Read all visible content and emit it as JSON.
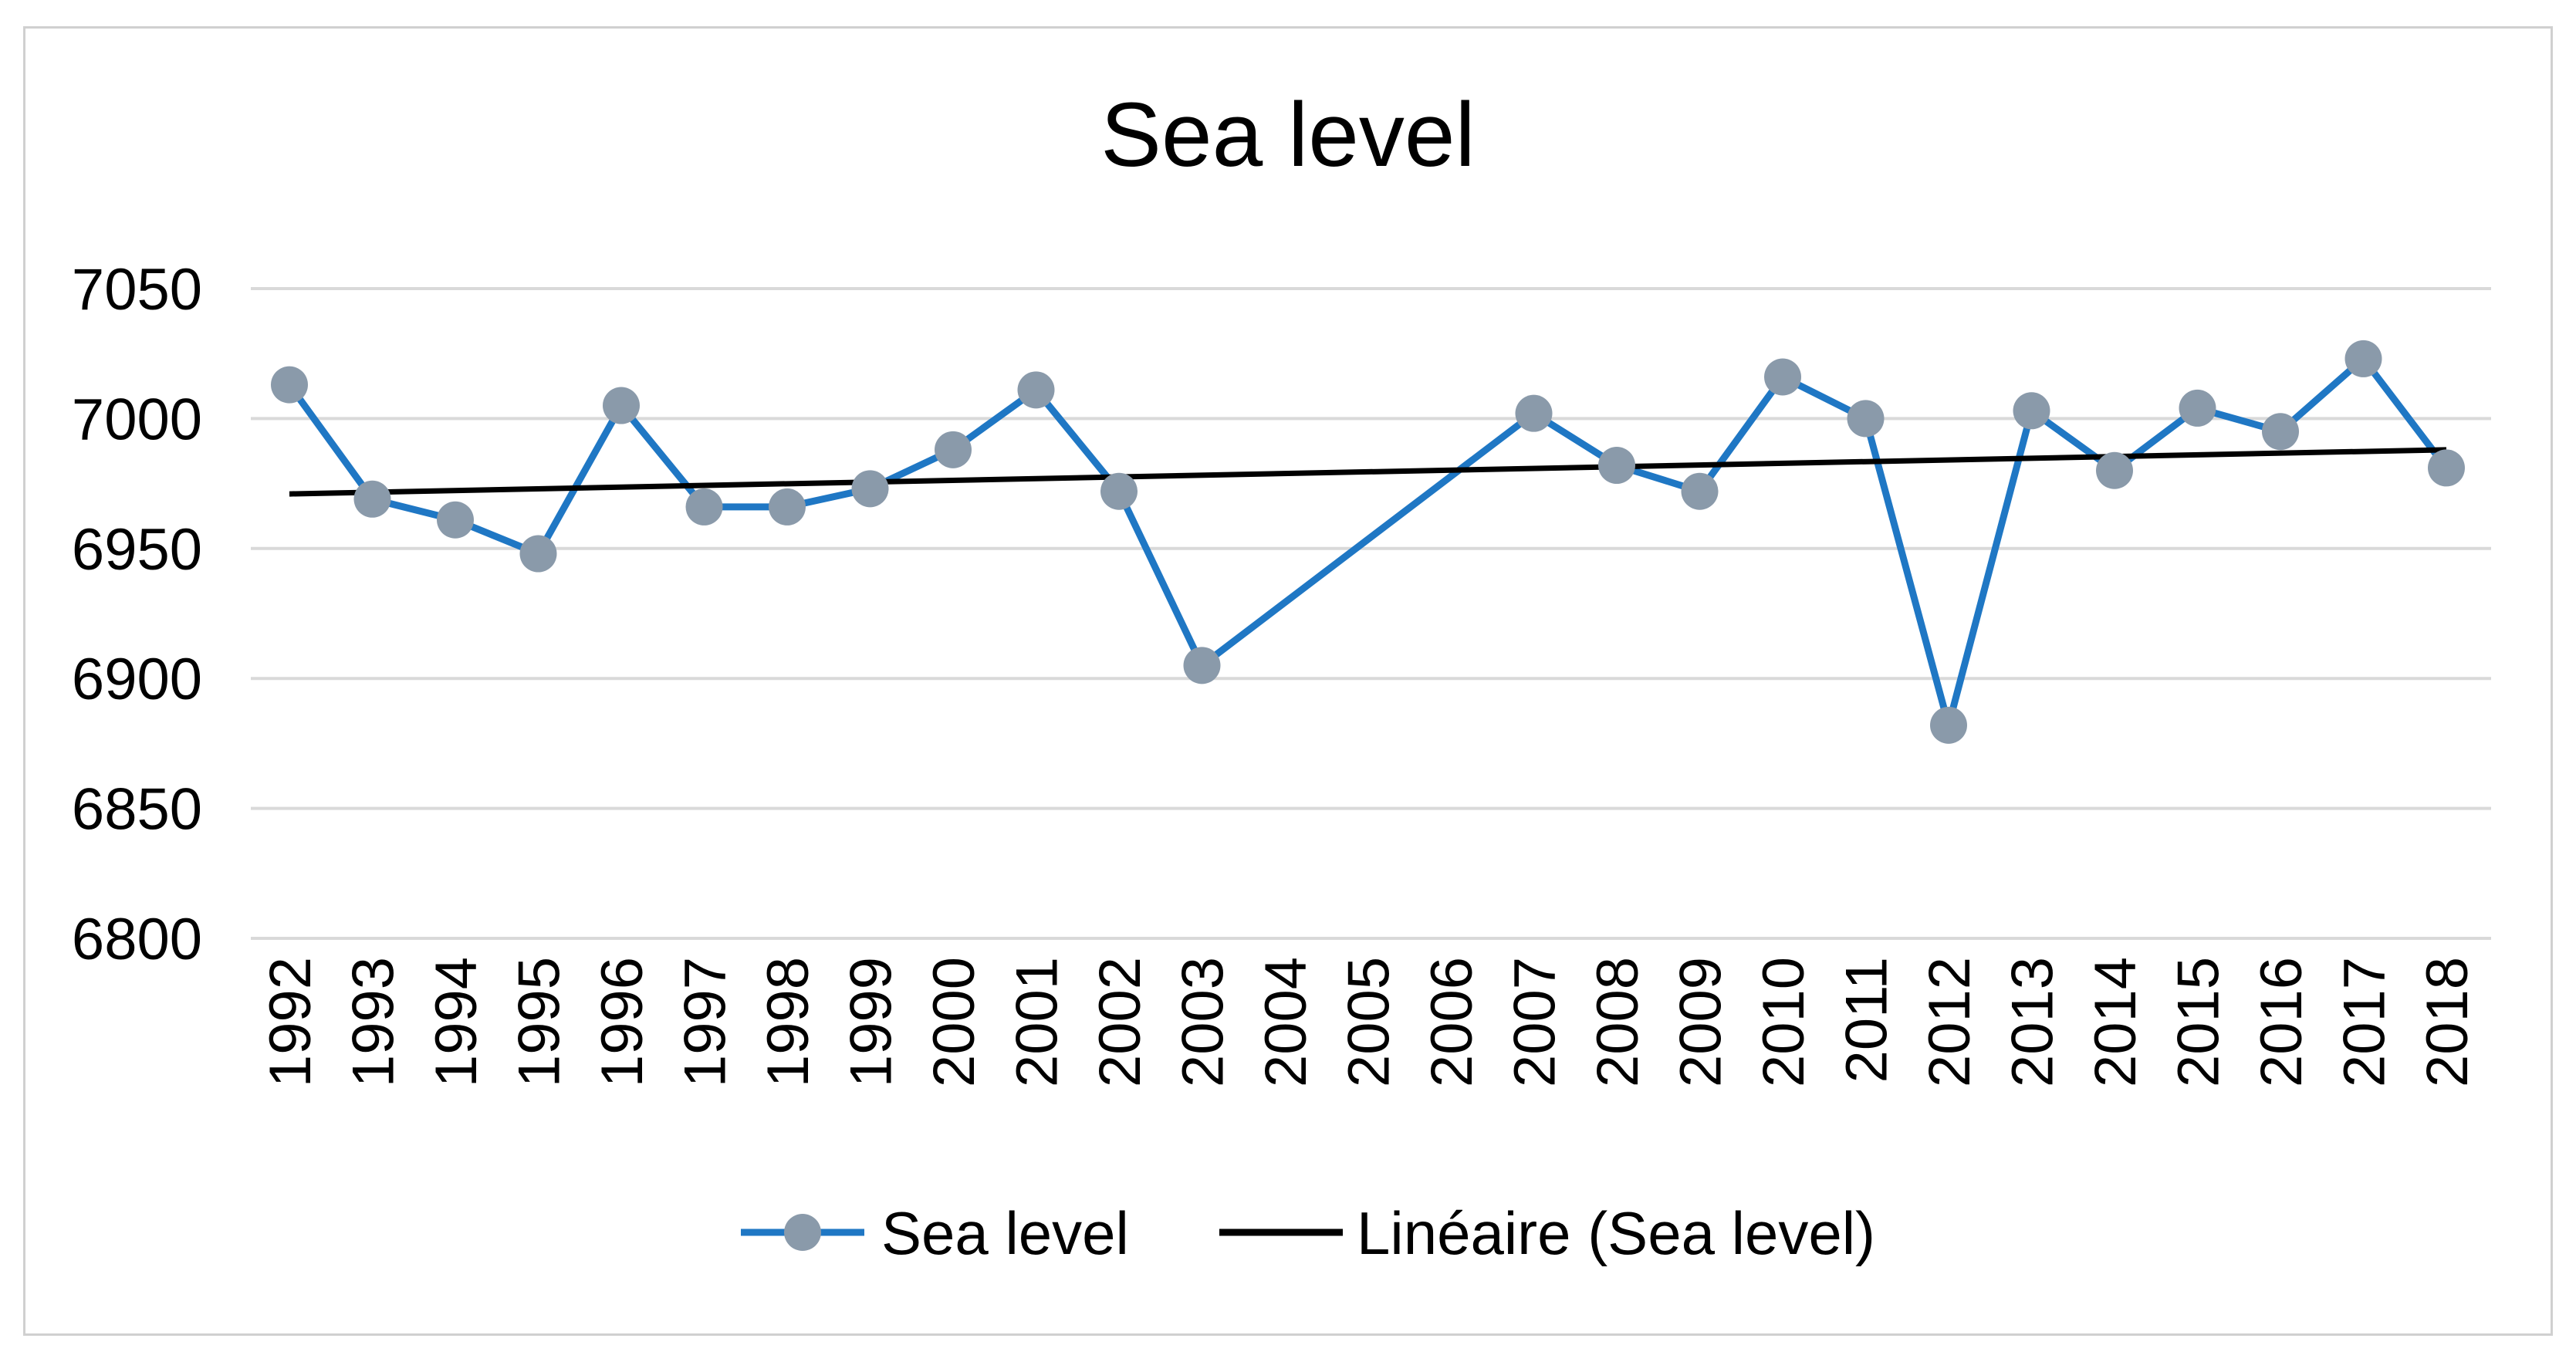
{
  "chart_data": {
    "type": "line",
    "title": "Sea level",
    "xlabel": "",
    "ylabel": "",
    "ylim": [
      6800,
      7050
    ],
    "yticks": [
      6800,
      6850,
      6900,
      6950,
      7000,
      7050
    ],
    "ytick_labels": [
      "6800",
      "6850",
      "6900",
      "6950",
      "7000",
      "7050"
    ],
    "grid": true,
    "legend_position": "bottom",
    "categories": [
      "1992",
      "1993",
      "1994",
      "1995",
      "1996",
      "1997",
      "1998",
      "1999",
      "2000",
      "2001",
      "2002",
      "2003",
      "2004",
      "2005",
      "2006",
      "2007",
      "2008",
      "2009",
      "2010",
      "2011",
      "2012",
      "2013",
      "2014",
      "2015",
      "2016",
      "2017",
      "2018"
    ],
    "series": [
      {
        "name": "Sea level",
        "color": "#1f77c4",
        "marker_color": "#8a9aaa",
        "values": [
          7013,
          6969,
          6961,
          6948,
          7005,
          6966,
          6966,
          6973,
          6988,
          7011,
          6972,
          6905,
          null,
          null,
          null,
          7002,
          6982,
          6972,
          7016,
          7000,
          6882,
          7003,
          6980,
          7004,
          6995,
          7023,
          6981
        ]
      }
    ],
    "trendline": {
      "name": "Linéaire (Sea level)",
      "color": "#000000",
      "start_value": 6971,
      "end_value": 6988
    }
  }
}
